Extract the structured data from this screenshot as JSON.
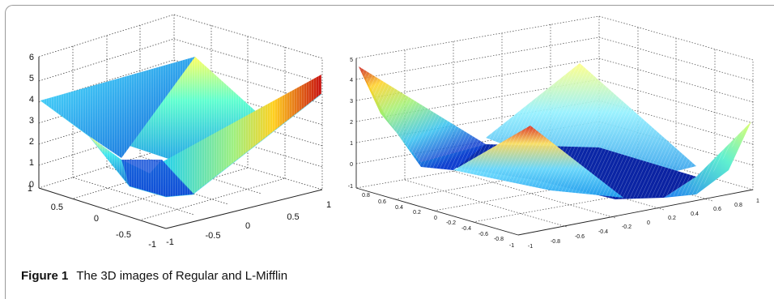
{
  "figure": {
    "label": "Figure 1",
    "caption": "The 3D images of Regular and L-Mifflin"
  },
  "chart_data": [
    {
      "type": "surface",
      "z_ticks": [
        "0",
        "1",
        "2",
        "3",
        "4",
        "5",
        "6"
      ],
      "x_ticks": [
        "-1",
        "-0.5",
        "0",
        "0.5",
        "1"
      ],
      "y_ticks": [
        "1",
        "0.5",
        "0",
        "-0.5",
        "-1"
      ],
      "zlim": [
        0,
        6
      ],
      "grid": true,
      "colormap": "jet"
    },
    {
      "type": "mesh",
      "z_ticks": [
        "-1",
        "0",
        "1",
        "2",
        "3",
        "4",
        "5"
      ],
      "y_ticks": [
        "0.8",
        "0.6",
        "0.4",
        "0.2",
        "0",
        "-0.2",
        "-0.4",
        "-0.6",
        "-0.8",
        "-1"
      ],
      "x_ticks": [
        "-1",
        "-0.8",
        "-0.6",
        "-0.4",
        "-0.2",
        "0",
        "0.2",
        "0.4",
        "0.6",
        "0.8",
        "1"
      ],
      "zlim": [
        -1,
        5
      ],
      "grid": true,
      "colormap": "jet"
    }
  ]
}
